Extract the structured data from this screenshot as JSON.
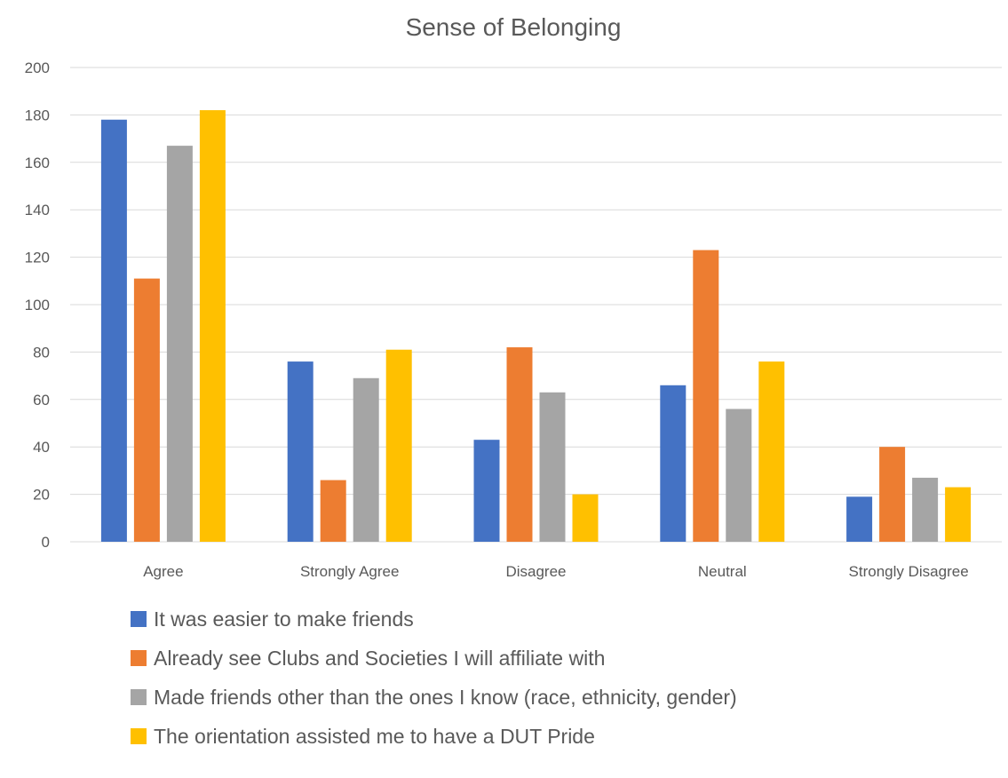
{
  "chart_data": {
    "type": "bar",
    "title": "Sense of Belonging",
    "categories": [
      "Agree",
      "Strongly Agree",
      "Disagree",
      "Neutral",
      "Strongly Disagree"
    ],
    "series": [
      {
        "name": "It was easier to make friends",
        "color": "#4472c4",
        "values": [
          178,
          76,
          43,
          66,
          19
        ]
      },
      {
        "name": "Already see Clubs and Societies I will affiliate with",
        "color": "#ed7d31",
        "values": [
          111,
          26,
          82,
          123,
          40
        ]
      },
      {
        "name": "Made friends other than the ones I know (race, ethnicity, gender)",
        "color": "#a5a5a5",
        "values": [
          167,
          69,
          63,
          56,
          27
        ]
      },
      {
        "name": "The orientation assisted me to have a DUT Pride",
        "color": "#ffc000",
        "values": [
          182,
          81,
          20,
          76,
          23
        ]
      }
    ],
    "ylim": [
      0,
      200
    ],
    "yticks": [
      0,
      20,
      40,
      60,
      80,
      100,
      120,
      140,
      160,
      180,
      200
    ],
    "grid": true,
    "legend_position": "bottom"
  }
}
